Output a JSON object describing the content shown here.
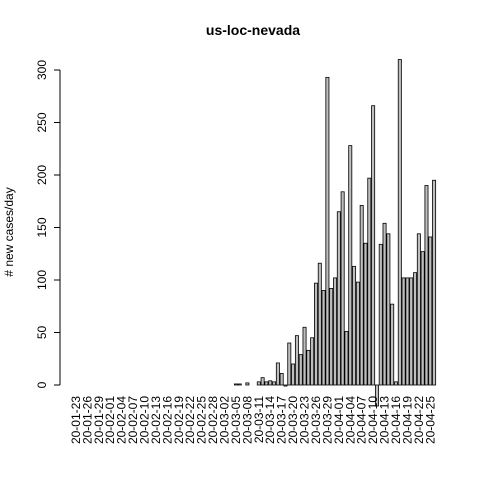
{
  "chart_data": {
    "type": "bar",
    "title": "us-loc-nevada",
    "xlabel": "",
    "ylabel": "# new cases/day",
    "ylim": [
      -25,
      312
    ],
    "y_ticks": [
      0,
      50,
      100,
      150,
      200,
      250,
      300
    ],
    "x_tick_labels": [
      "20-01-23",
      "20-01-26",
      "20-01-29",
      "20-02-01",
      "20-02-04",
      "20-02-07",
      "20-02-10",
      "20-02-13",
      "20-02-16",
      "20-02-19",
      "20-02-22",
      "20-02-25",
      "20-02-28",
      "20-03-02",
      "20-03-05",
      "20-03-08",
      "20-03-11",
      "20-03-14",
      "20-03-17",
      "20-03-20",
      "20-03-23",
      "20-03-26",
      "20-03-29",
      "20-04-01",
      "20-04-04",
      "20-04-07",
      "20-04-10",
      "20-04-13",
      "20-04-16",
      "20-04-19",
      "20-04-22",
      "20-04-25"
    ],
    "categories": [
      "20-01-23",
      "20-01-24",
      "20-01-25",
      "20-01-26",
      "20-01-27",
      "20-01-28",
      "20-01-29",
      "20-01-30",
      "20-01-31",
      "20-02-01",
      "20-02-02",
      "20-02-03",
      "20-02-04",
      "20-02-05",
      "20-02-06",
      "20-02-07",
      "20-02-08",
      "20-02-09",
      "20-02-10",
      "20-02-11",
      "20-02-12",
      "20-02-13",
      "20-02-14",
      "20-02-15",
      "20-02-16",
      "20-02-17",
      "20-02-18",
      "20-02-19",
      "20-02-20",
      "20-02-21",
      "20-02-22",
      "20-02-23",
      "20-02-24",
      "20-02-25",
      "20-02-26",
      "20-02-27",
      "20-02-28",
      "20-02-29",
      "20-03-01",
      "20-03-02",
      "20-03-03",
      "20-03-04",
      "20-03-05",
      "20-03-06",
      "20-03-07",
      "20-03-08",
      "20-03-09",
      "20-03-10",
      "20-03-11",
      "20-03-12",
      "20-03-13",
      "20-03-14",
      "20-03-15",
      "20-03-16",
      "20-03-17",
      "20-03-18",
      "20-03-19",
      "20-03-20",
      "20-03-21",
      "20-03-22",
      "20-03-23",
      "20-03-24",
      "20-03-25",
      "20-03-26",
      "20-03-27",
      "20-03-28",
      "20-03-29",
      "20-03-30",
      "20-03-31",
      "20-04-01",
      "20-04-02",
      "20-04-03",
      "20-04-04",
      "20-04-05",
      "20-04-06",
      "20-04-07",
      "20-04-08",
      "20-04-09",
      "20-04-10",
      "20-04-11",
      "20-04-12",
      "20-04-13",
      "20-04-14",
      "20-04-15",
      "20-04-16",
      "20-04-17",
      "20-04-18",
      "20-04-19",
      "20-04-20",
      "20-04-21",
      "20-04-22",
      "20-04-23",
      "20-04-24",
      "20-04-25",
      "20-04-26"
    ],
    "values": [
      0,
      0,
      0,
      0,
      0,
      0,
      0,
      0,
      0,
      0,
      0,
      0,
      0,
      0,
      0,
      0,
      0,
      0,
      0,
      0,
      0,
      0,
      0,
      0,
      0,
      0,
      0,
      0,
      0,
      0,
      0,
      0,
      0,
      0,
      0,
      0,
      0,
      0,
      0,
      0,
      0,
      0,
      1,
      1,
      0,
      2,
      0,
      0,
      3,
      7,
      3,
      4,
      3,
      21,
      11,
      -1,
      40,
      20,
      47,
      29,
      55,
      33,
      45,
      97,
      116,
      90,
      293,
      92,
      102,
      165,
      184,
      51,
      228,
      113,
      98,
      171,
      135,
      197,
      266,
      -20,
      134,
      154,
      144,
      77,
      3,
      310,
      102,
      102,
      102,
      107,
      144,
      127,
      190,
      141,
      195
    ],
    "grid": false,
    "bar_fill": "#bebebe",
    "bar_border": "#000000"
  }
}
